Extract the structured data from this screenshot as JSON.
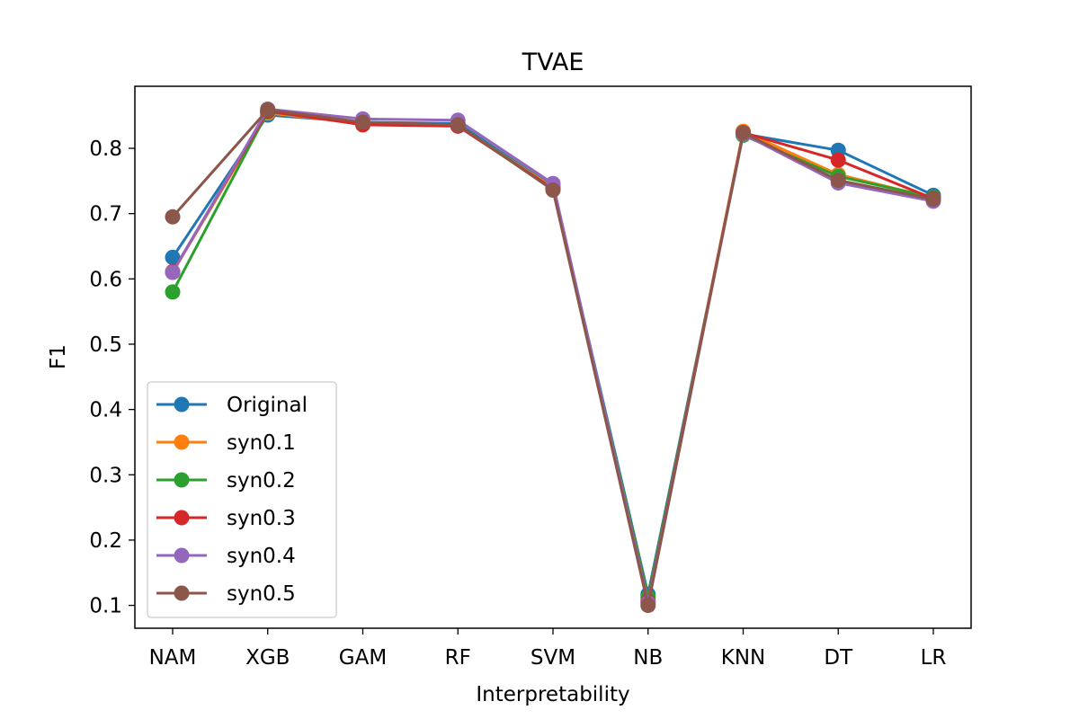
{
  "chart_data": {
    "type": "line",
    "title": "TVAE",
    "xlabel": "Interpretability",
    "ylabel": "F1",
    "categories": [
      "NAM",
      "XGB",
      "GAM",
      "RF",
      "SVM",
      "NB",
      "KNN",
      "DT",
      "LR"
    ],
    "ylim": [
      0.065,
      0.895
    ],
    "yticks": [
      0.1,
      0.2,
      0.3,
      0.4,
      0.5,
      0.6,
      0.7,
      0.8
    ],
    "grid": false,
    "legend_position": "lower-left",
    "series": [
      {
        "name": "Original",
        "color": "#1f77b4",
        "values": [
          0.633,
          0.851,
          0.84,
          0.838,
          0.741,
          0.117,
          0.822,
          0.797,
          0.728
        ]
      },
      {
        "name": "syn0.1",
        "color": "#ff7f0e",
        "values": [
          0.61,
          0.854,
          0.838,
          0.835,
          0.74,
          0.108,
          0.826,
          0.76,
          0.724
        ]
      },
      {
        "name": "syn0.2",
        "color": "#2ca02c",
        "values": [
          0.58,
          0.856,
          0.838,
          0.836,
          0.738,
          0.113,
          0.82,
          0.757,
          0.725
        ]
      },
      {
        "name": "syn0.3",
        "color": "#d62728",
        "values": [
          0.611,
          0.857,
          0.836,
          0.834,
          0.738,
          0.106,
          0.824,
          0.782,
          0.723
        ]
      },
      {
        "name": "syn0.4",
        "color": "#9467bd",
        "values": [
          0.61,
          0.86,
          0.845,
          0.843,
          0.746,
          0.104,
          0.822,
          0.747,
          0.719
        ]
      },
      {
        "name": "syn0.5",
        "color": "#8c564b",
        "values": [
          0.695,
          0.859,
          0.84,
          0.836,
          0.736,
          0.1,
          0.824,
          0.751,
          0.722
        ]
      }
    ]
  }
}
